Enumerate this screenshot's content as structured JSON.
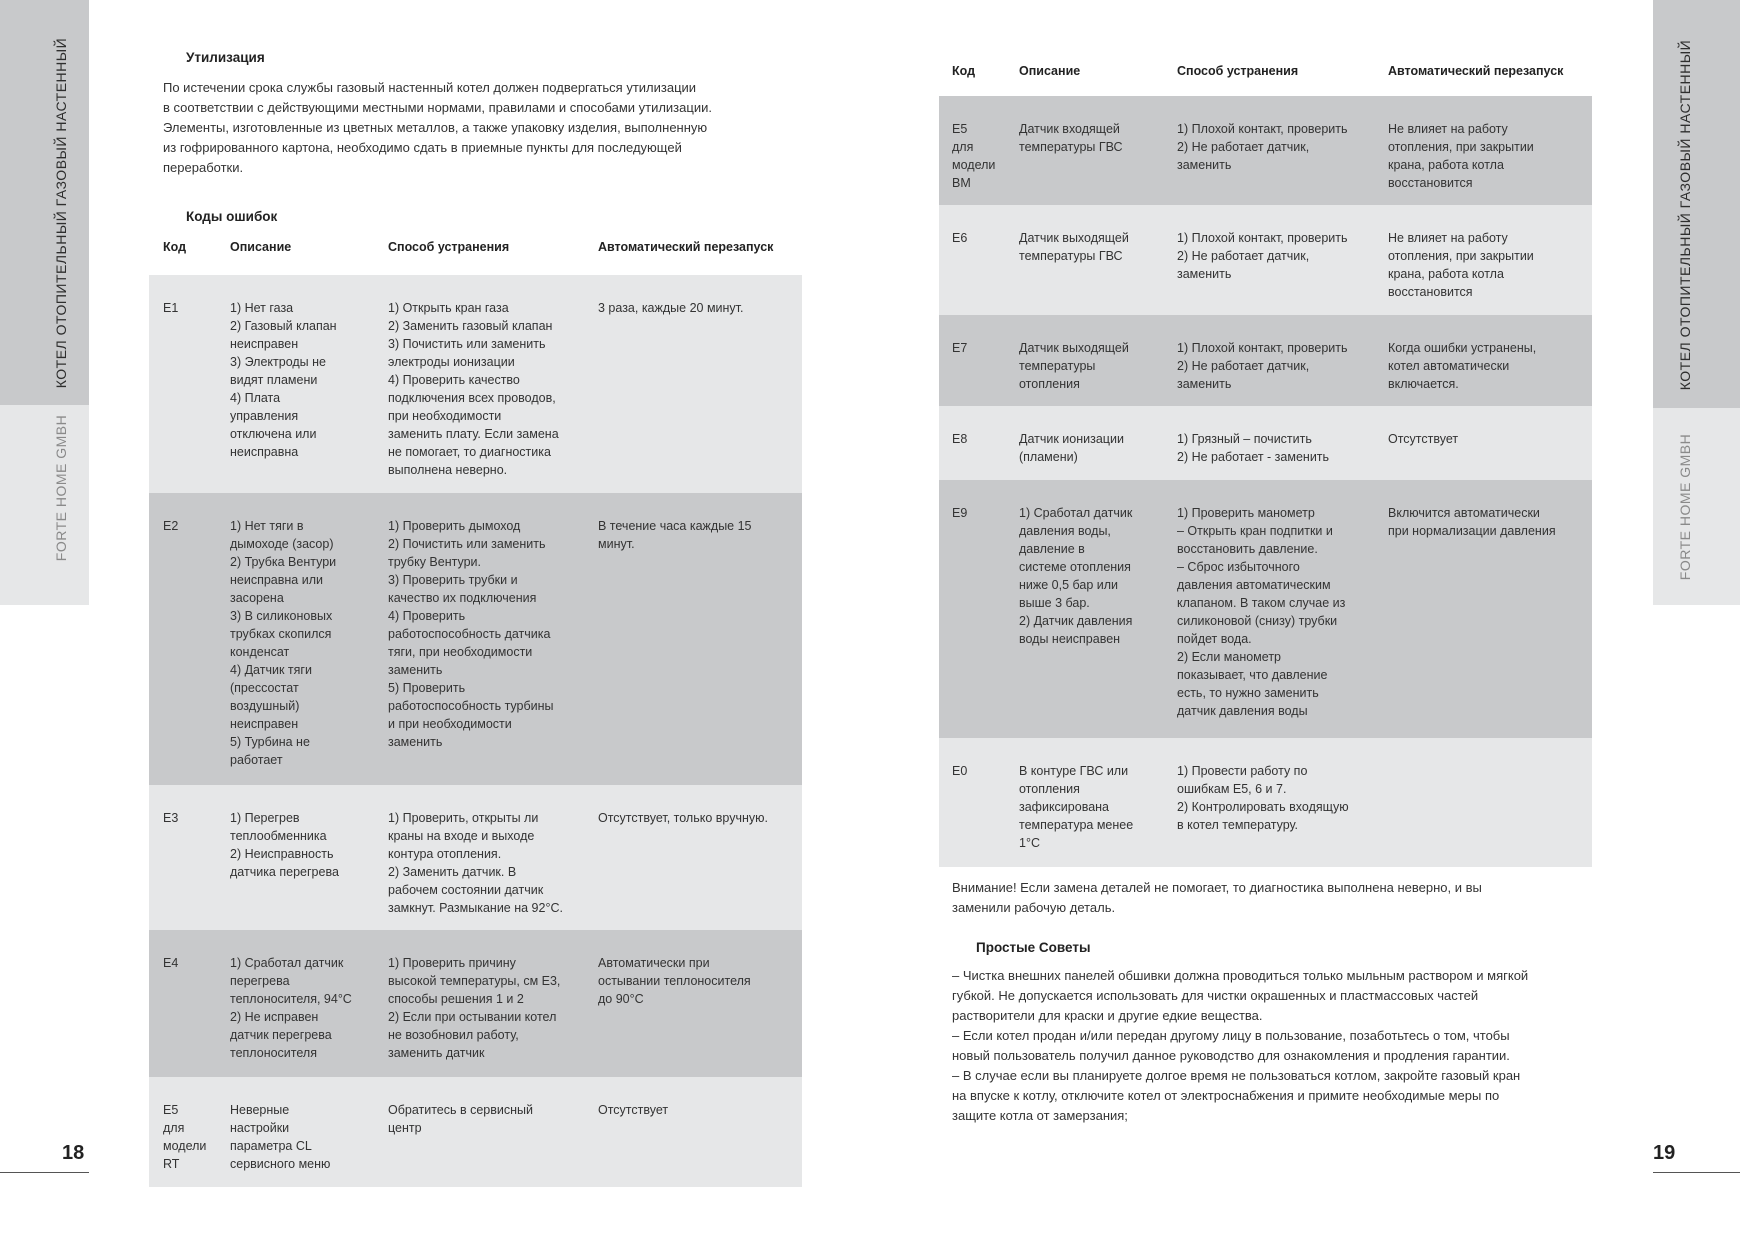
{
  "sidebar": {
    "title": "КОТЕЛ ОТОПИТЕЛЬНЫЙ ГАЗОВЫЙ НАСТЕННЫЙ",
    "brand": "FORTE HOME GMBH"
  },
  "colors": {
    "dark_band": "#c8c9cb",
    "light_band": "#e6e7e8"
  },
  "left_page": {
    "page_number": "18",
    "disposal_heading": "Утилизация",
    "disposal_text": "По истечении срока службы газовый настенный котел должен подвергаться утилизации\nв соответствии с действующими местными нормами, правилами и способами утилизации.\nЭлементы, изготовленные из цветных металлов, а также упаковку изделия, выполненную\nиз гофрированного картона, необходимо сдать в приемные пункты для последующей\nпереработки.",
    "codes_heading": "Коды ошибок"
  },
  "table_headers": [
    "Код",
    "Описание",
    "Способ устранения",
    "Автоматический перезапуск"
  ],
  "left_rows": [
    {
      "code": "E1",
      "desc": "1) Нет газа\n2) Газовый клапан\nнеисправен\n3) Электроды не\nвидят пламени\n4) Плата\nуправления\nотключена или\nнеисправна",
      "fix": "1) Открыть кран газа\n2) Заменить газовый клапан\n3) Почистить или заменить\nэлектроды ионизации\n4) Проверить качество\nподключения всех проводов,\nпри необходимости\nзаменить плату. Если замена\nне помогает, то диагностика\nвыполнена неверно.",
      "restart": "3 раза, каждые 20 минут."
    },
    {
      "code": "E2",
      "desc": "1) Нет тяги в\nдымоходе (засор)\n2) Трубка Вентури\nнеисправна или\nзасорена\n3) В силиконовых\nтрубках скопился\nконденсат\n4) Датчик тяги\n(прессостат\nвоздушный)\nнеисправен\n5) Турбина не\nработает",
      "fix": "1) Проверить дымоход\n2) Почистить или заменить\nтрубку Вентури.\n3) Проверить трубки и\nкачество их подключения\n4) Проверить\nработоспособность датчика\nтяги, при необходимости\nзаменить\n5) Проверить\nработоспособность турбины\nи при необходимости\nзаменить",
      "restart": "В течение часа каждые 15\nминут."
    },
    {
      "code": "E3",
      "desc": "1) Перегрев\nтеплообменника\n2) Неисправность\nдатчика перегрева",
      "fix": "1) Проверить, открыты ли\nкраны на входе и выходе\nконтура отопления.\n2) Заменить датчик. В\nрабочем состоянии датчик\nзамкнут. Размыкание на 92°С.",
      "restart": "Отсутствует, только вручную."
    },
    {
      "code": "E4",
      "desc": "1) Сработал датчик\nперегрева\nтеплоносителя, 94°С\n2) Не исправен\nдатчик перегрева\nтеплоносителя",
      "fix": "1) Проверить причину\nвысокой температуры, см Е3,\nспособы решения 1 и 2\n2) Если при остывании котел\nне возобновил работу,\nзаменить датчик",
      "restart": "Автоматически при\nостывании теплоносителя\nдо 90°С"
    },
    {
      "code": "E5\nдля\nмодели\nRT",
      "desc": "Неверные\nнастройки\nпараметра CL\nсервисного меню",
      "fix": "Обратитесь в сервисный\nцентр",
      "restart": "Отсутствует"
    }
  ],
  "right_rows": [
    {
      "code": "E5\nдля\nмодели\nBM",
      "desc": "Датчик входящей\nтемпературы ГВС",
      "fix": "1) Плохой контакт, проверить\n2) Не работает датчик,\nзаменить",
      "restart": "Не влияет на работу\nотопления, при закрытии\nкрана, работа котла\nвосстановится"
    },
    {
      "code": "E6",
      "desc": "Датчик выходящей\nтемпературы ГВС",
      "fix": "1) Плохой контакт, проверить\n2) Не работает датчик,\nзаменить",
      "restart": "Не влияет на работу\nотопления, при закрытии\nкрана, работа котла\nвосстановится"
    },
    {
      "code": "E7",
      "desc": "Датчик выходящей\nтемпературы\nотопления",
      "fix": "1) Плохой контакт, проверить\n2) Не работает датчик,\nзаменить",
      "restart": "Когда ошибки устранены,\nкотел автоматически\nвключается."
    },
    {
      "code": "E8",
      "desc": "Датчик ионизации\n(пламени)",
      "fix": "1) Грязный – почистить\n2) Не работает - заменить",
      "restart": "Отсутствует"
    },
    {
      "code": "E9",
      "desc": "1) Сработал датчик\nдавления воды,\nдавление в\nсистеме отопления\nниже 0,5 бар или\nвыше 3 бар.\n2) Датчик давления\nводы неисправен",
      "fix": "1) Проверить манометр\n– Открыть кран подпитки и\nвосстановить давление.\n– Сброс избыточного\nдавления автоматическим\nклапаном. В таком случае из\nсиликоновой (снизу) трубки\nпойдет вода.\n2) Если манометр\nпоказывает, что давление\nесть, то нужно заменить\nдатчик давления воды",
      "restart": "Включится автоматически\nпри нормализации давления"
    },
    {
      "code": "E0",
      "desc": "В контуре ГВС или\nотопления\nзафиксирована\nтемпература менее\n1°С",
      "fix": "1) Провести работу по\nошибкам Е5, 6 и 7.\n2) Контролировать входящую\nв котел температуру.",
      "restart": ""
    }
  ],
  "right_page": {
    "page_number": "19",
    "warning": "Внимание! Если замена деталей не помогает, то диагностика выполнена неверно, и вы\nзаменили рабочую деталь.",
    "tips_heading": "Простые Советы",
    "tips_text": "– Чистка внешних панелей обшивки должна проводиться только мыльным раствором и мягкой\nгубкой. Не допускается использовать для чистки окрашенных и пластмассовых частей\nрастворители для краски и другие едкие вещества.\n– Если котел продан и/или передан другому лицу в пользование, позаботьтесь о том, чтобы\nновый пользователь получил данное руководство для ознакомления и продления гарантии.\n– В случае если вы планируете долгое время не пользоваться котлом, закройте газовый кран\nна впуске к котлу, отключите котел от электроснабжения и примите необходимые меры по\nзащите котла от замерзания;"
  }
}
